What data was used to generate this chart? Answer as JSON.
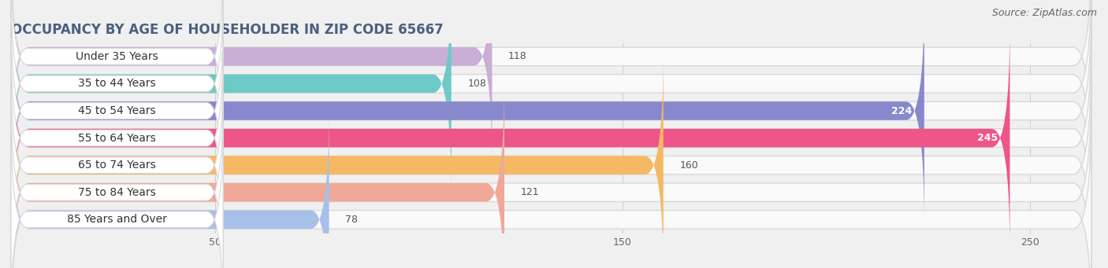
{
  "title": "OCCUPANCY BY AGE OF HOUSEHOLDER IN ZIP CODE 65667",
  "source": "Source: ZipAtlas.com",
  "categories": [
    "Under 35 Years",
    "35 to 44 Years",
    "45 to 54 Years",
    "55 to 64 Years",
    "65 to 74 Years",
    "75 to 84 Years",
    "85 Years and Over"
  ],
  "values": [
    118,
    108,
    224,
    245,
    160,
    121,
    78
  ],
  "bar_colors": [
    "#c9aed6",
    "#6ec9c9",
    "#8888cc",
    "#ee5588",
    "#f5b863",
    "#f0a898",
    "#a8c0e8"
  ],
  "background_color": "#f0f0f0",
  "bar_bg_color": "#fafafa",
  "bar_bg_border": "#d8d8d8",
  "xlim_max": 265,
  "xticks": [
    50,
    150,
    250
  ],
  "title_fontsize": 12,
  "source_fontsize": 9,
  "label_fontsize": 10,
  "value_fontsize": 9,
  "bar_height": 0.68,
  "fig_width": 14.06,
  "fig_height": 3.41
}
